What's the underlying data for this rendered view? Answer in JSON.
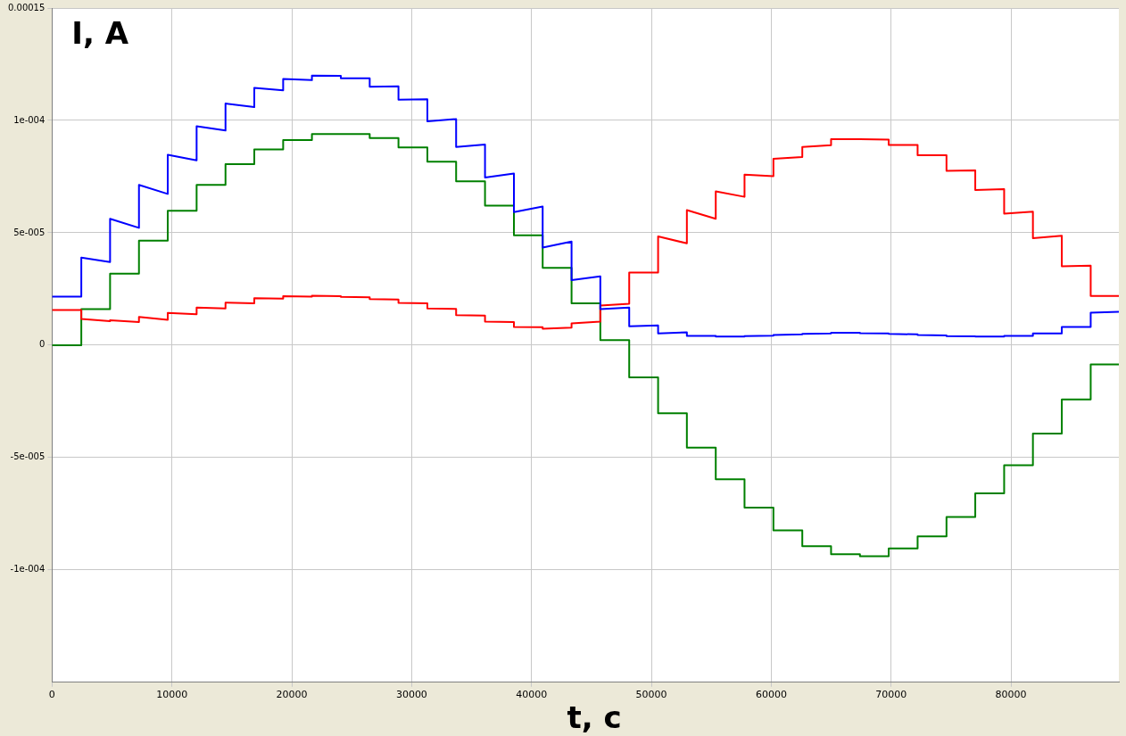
{
  "chart_data": {
    "type": "line",
    "xlabel": "t, c",
    "ylabel": "I, A",
    "x": [
      0,
      2440,
      2440,
      4840,
      4840,
      7250,
      7250,
      9650,
      9650,
      12060,
      12060,
      14470,
      14470,
      16870,
      16870,
      19280,
      19280,
      21680,
      21680,
      24090,
      24090,
      26500,
      26500,
      28900,
      28900,
      31310,
      31310,
      33710,
      33710,
      36120,
      36120,
      38530,
      38530,
      40930,
      40930,
      43340,
      43340,
      45740,
      45740,
      48150,
      48150,
      50560,
      50560,
      52960,
      52960,
      55370,
      55370,
      57770,
      57770,
      60180,
      60180,
      62590,
      62590,
      64990,
      64990,
      67400,
      67400,
      69800,
      69800,
      72210,
      72210,
      74620,
      74620,
      77020,
      77020,
      79430,
      79430,
      81830,
      81830,
      84240,
      84240,
      86650,
      86650,
      89000
    ],
    "series": [
      {
        "color": "#0000ff",
        "values": [
          2.16e-05,
          2.16e-05,
          3.9e-05,
          3.7e-05,
          5.62e-05,
          5.22e-05,
          7.13e-05,
          6.73e-05,
          8.47e-05,
          8.22e-05,
          9.74e-05,
          9.55e-05,
          0.0001075,
          0.0001059,
          0.0001145,
          0.0001134,
          0.0001184,
          0.0001179,
          0.0001199,
          0.0001198,
          0.0001187,
          0.0001187,
          0.000115,
          0.0001152,
          0.0001092,
          0.0001094,
          9.96e-05,
          0.0001006,
          8.82e-05,
          8.93e-05,
          7.46e-05,
          7.64e-05,
          5.92e-05,
          6.17e-05,
          4.34e-05,
          4.61e-05,
          2.89e-05,
          3.06e-05,
          1.6e-05,
          1.67e-05,
          8.4e-06,
          8.8e-06,
          5.2e-06,
          5.7e-06,
          4.1e-06,
          4.1e-06,
          3.8e-06,
          3.8e-06,
          4e-06,
          4.2e-06,
          4.5e-06,
          4.8e-06,
          5e-06,
          5.2e-06,
          5.5e-06,
          5.5e-06,
          5.3e-06,
          5.2e-06,
          5e-06,
          4.8e-06,
          4.5e-06,
          4.3e-06,
          4e-06,
          3.9e-06,
          3.8e-06,
          3.8e-06,
          4.1e-06,
          4.1e-06,
          5.2e-06,
          5.2e-06,
          8.1e-06,
          8.1e-06,
          1.44e-05,
          1.48e-05
        ]
      },
      {
        "color": "#ff0000",
        "values": [
          1.56e-05,
          1.56e-05,
          1.17e-05,
          1.07e-05,
          1.11e-05,
          1.03e-05,
          1.26e-05,
          1.13e-05,
          1.43e-05,
          1.38e-05,
          1.67e-05,
          1.63e-05,
          1.89e-05,
          1.86e-05,
          2.09e-05,
          2.07e-05,
          2.18e-05,
          2.16e-05,
          2.2e-05,
          2.18e-05,
          2.15e-05,
          2.13e-05,
          2.05e-05,
          2.03e-05,
          1.88e-05,
          1.86e-05,
          1.63e-05,
          1.61e-05,
          1.34e-05,
          1.32e-05,
          1.05e-05,
          1.03e-05,
          8.1e-06,
          8e-06,
          7.3e-06,
          7.8e-06,
          9.7e-06,
          1.05e-05,
          1.76e-05,
          1.84e-05,
          3.23e-05,
          3.23e-05,
          4.84e-05,
          4.53e-05,
          6.01e-05,
          5.62e-05,
          6.84e-05,
          6.6e-05,
          7.59e-05,
          7.52e-05,
          8.29e-05,
          8.37e-05,
          8.82e-05,
          8.9e-05,
          9.17e-05,
          9.17e-05,
          9.17e-05,
          9.15e-05,
          8.91e-05,
          8.91e-05,
          8.45e-05,
          8.45e-05,
          7.76e-05,
          7.78e-05,
          6.9e-05,
          6.94e-05,
          5.85e-05,
          5.94e-05,
          4.76e-05,
          4.87e-05,
          3.51e-05,
          3.54e-05,
          2.19e-05,
          2.19e-05
        ]
      },
      {
        "color": "#008000",
        "values": [
          0,
          0,
          1.6e-05,
          1.6e-05,
          3.18e-05,
          3.18e-05,
          4.65e-05,
          4.65e-05,
          5.98e-05,
          5.98e-05,
          7.13e-05,
          7.13e-05,
          8.05e-05,
          8.05e-05,
          8.71e-05,
          8.71e-05,
          9.13e-05,
          9.13e-05,
          9.39e-05,
          9.39e-05,
          9.39e-05,
          9.39e-05,
          9.21e-05,
          9.21e-05,
          8.8e-05,
          8.8e-05,
          8.16e-05,
          8.16e-05,
          7.29e-05,
          7.29e-05,
          6.21e-05,
          6.21e-05,
          4.89e-05,
          4.89e-05,
          3.44e-05,
          3.44e-05,
          1.86e-05,
          1.86e-05,
          2.2e-06,
          2.2e-06,
          -1.43e-05,
          -1.43e-05,
          -3.03e-05,
          -3.03e-05,
          -4.56e-05,
          -4.56e-05,
          -5.97e-05,
          -5.97e-05,
          -7.23e-05,
          -7.23e-05,
          -8.24e-05,
          -8.24e-05,
          -8.94e-05,
          -8.94e-05,
          -9.3e-05,
          -9.3e-05,
          -9.39e-05,
          -9.39e-05,
          -9.04e-05,
          -9.04e-05,
          -8.51e-05,
          -8.51e-05,
          -7.64e-05,
          -7.64e-05,
          -6.59e-05,
          -6.59e-05,
          -5.34e-05,
          -5.34e-05,
          -3.93e-05,
          -3.93e-05,
          -2.42e-05,
          -2.42e-05,
          -8.6e-06,
          -8.6e-06
        ]
      }
    ],
    "xlim": [
      0,
      89000
    ],
    "xticks": [
      0,
      10000,
      20000,
      30000,
      40000,
      50000,
      60000,
      70000,
      80000
    ],
    "ylim": [
      -0.00015,
      0.00015
    ],
    "yticks": [
      {
        "value": -0.0001,
        "label": "-1e-004"
      },
      {
        "value": -5e-05,
        "label": "-5e-005"
      },
      0,
      {
        "value": 5e-05,
        "label": "5e-005"
      },
      {
        "value": 0.0001,
        "label": "1e-004"
      },
      0.00015
    ],
    "grid": true
  }
}
